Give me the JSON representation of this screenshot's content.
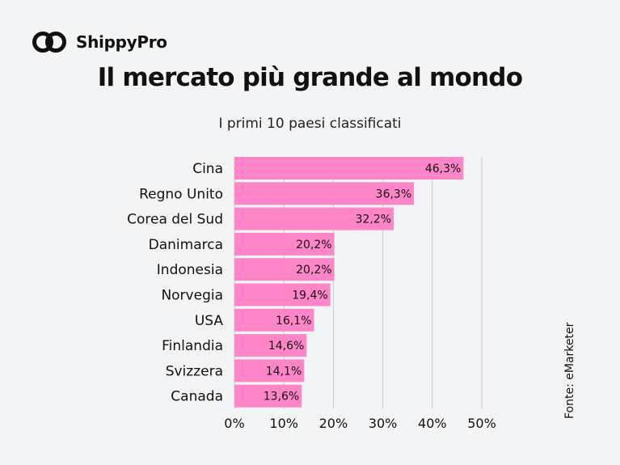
{
  "brand": {
    "name": "ShippyPro",
    "logo_icon": "infinity-link-icon"
  },
  "chart_data": {
    "type": "bar",
    "orientation": "horizontal",
    "title": "Il mercato più grande al mondo",
    "subtitle": "I primi 10 paesi classificati",
    "categories": [
      "Cina",
      "Regno Unito",
      "Corea del Sud",
      "Danimarca",
      "Indonesia",
      "Norvegia",
      "USA",
      "Finlandia",
      "Svizzera",
      "Canada"
    ],
    "values": [
      46.3,
      36.3,
      32.2,
      20.2,
      20.2,
      19.4,
      16.1,
      14.6,
      14.1,
      13.6
    ],
    "value_labels": [
      "46,3%",
      "36,3%",
      "32,2%",
      "20,2%",
      "20,2%",
      "19,4%",
      "16,1%",
      "14,6%",
      "14,1%",
      "13,6%"
    ],
    "xticks": [
      0,
      10,
      20,
      30,
      40,
      50
    ],
    "xtick_labels": [
      "0%",
      "10%",
      "20%",
      "30%",
      "40%",
      "50%"
    ],
    "xlim": [
      0,
      50
    ],
    "grid": true,
    "bar_color": "#ff85c9",
    "source": "Fonte: eMarketer"
  }
}
